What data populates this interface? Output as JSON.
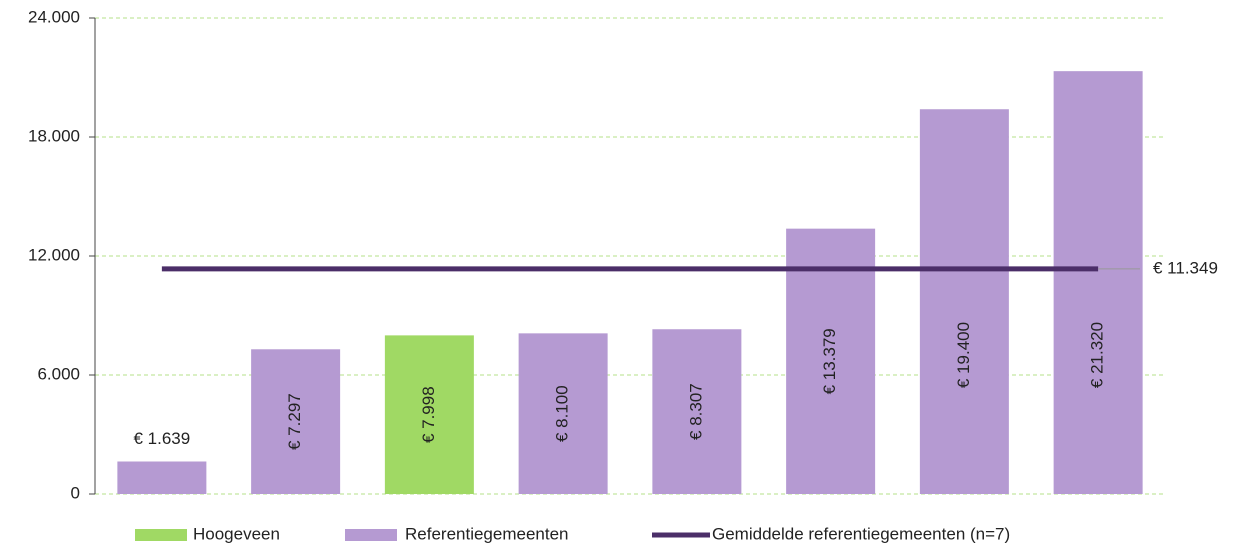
{
  "chart_data": {
    "type": "bar",
    "categories": [
      null,
      null,
      null,
      null,
      null,
      null,
      null,
      null
    ],
    "series": [
      {
        "name": "Hoogeveen",
        "color": "#a0d964",
        "values": [
          null,
          null,
          7998,
          null,
          null,
          null,
          null,
          null
        ],
        "value_labels": [
          null,
          null,
          "€ 7.998",
          null,
          null,
          null,
          null,
          null
        ]
      },
      {
        "name": "Referentiegemeenten",
        "color": "#b59ad2",
        "values": [
          1639,
          7297,
          null,
          8100,
          8307,
          13379,
          19400,
          21320
        ],
        "value_labels": [
          "€ 1.639",
          "€ 7.297",
          null,
          "€ 8.100",
          "€ 8.307",
          "€ 13.379",
          "€ 19.400",
          "€ 21.320"
        ]
      }
    ],
    "average": {
      "name": "Gemiddelde referentiegemeenten (n=7)",
      "color": "#4b2e68",
      "value": 11349,
      "value_label": "€ 11.349"
    },
    "ylim": [
      0,
      24000
    ],
    "yticks": [
      0,
      {
        "value": 6000,
        "label": "6.000"
      },
      {
        "value": 12000,
        "label": "12.000"
      },
      {
        "value": 18000,
        "label": "18.000"
      },
      {
        "value": 24000,
        "label": "24.000"
      }
    ],
    "grid": true,
    "legend": "bottom"
  }
}
